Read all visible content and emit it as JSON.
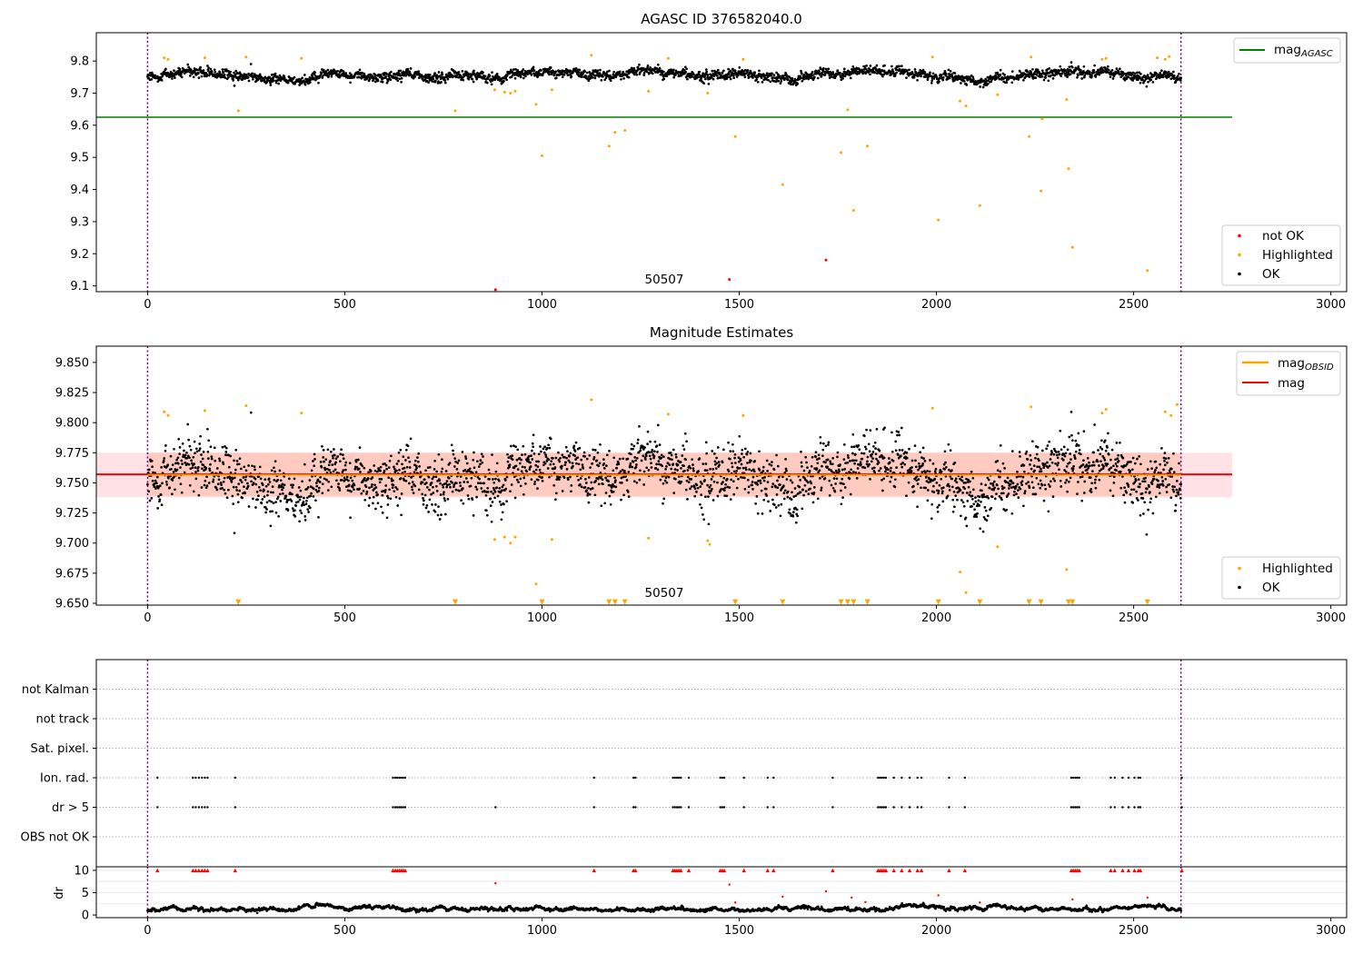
{
  "chart_data": [
    {
      "type": "scatter",
      "title": "AGASC ID 376582040.0",
      "xlim": [
        -130,
        3040
      ],
      "ylim": [
        9.082,
        9.888
      ],
      "x_ticks": [
        0,
        500,
        1000,
        1500,
        2000,
        2500,
        3000
      ],
      "y_ticks": [
        9.1,
        9.2,
        9.3,
        9.4,
        9.5,
        9.6,
        9.7,
        9.8
      ],
      "obsid_bounds": [
        0,
        2620
      ],
      "annotation": {
        "text": "50507",
        "x": 1310,
        "y": 9.105
      },
      "hlines": [
        {
          "name": "mag_AGASC",
          "y": 9.625,
          "x_range": [
            -130,
            2750
          ],
          "color": "#008000"
        }
      ],
      "legend_top": {
        "position": "top-right",
        "entries": [
          {
            "name": "mag",
            "sub": "AGASC",
            "color": "#008000",
            "kind": "line"
          }
        ]
      },
      "legend_bottom": {
        "position": "bottom-right",
        "entries": [
          {
            "name": "not OK",
            "color": "#ff0000",
            "kind": "dot"
          },
          {
            "name": "Highlighted",
            "color": "#ffa500",
            "kind": "dot"
          },
          {
            "name": "OK",
            "color": "#000000",
            "kind": "dot"
          }
        ]
      },
      "series": [
        {
          "name": "OK",
          "color": "#000000",
          "generated": {
            "n": 2620,
            "x_range": [
              0,
              2620
            ],
            "center": 9.757,
            "spread": 0.013
          }
        },
        {
          "name": "Highlighted",
          "color": "#ffa500",
          "points": [
            [
              42,
              9.81
            ],
            [
              52,
              9.805
            ],
            [
              145,
              9.81
            ],
            [
              230,
              9.645
            ],
            [
              250,
              9.812
            ],
            [
              390,
              9.808
            ],
            [
              780,
              9.645
            ],
            [
              880,
              9.71
            ],
            [
              905,
              9.703
            ],
            [
              920,
              9.7
            ],
            [
              932,
              9.706
            ],
            [
              985,
              9.665
            ],
            [
              1000,
              9.505
            ],
            [
              1025,
              9.71
            ],
            [
              1125,
              9.818
            ],
            [
              1170,
              9.535
            ],
            [
              1185,
              9.578
            ],
            [
              1210,
              9.584
            ],
            [
              1270,
              9.706
            ],
            [
              1320,
              9.808
            ],
            [
              1420,
              9.7
            ],
            [
              1490,
              9.565
            ],
            [
              1510,
              9.805
            ],
            [
              1610,
              9.415
            ],
            [
              1758,
              9.515
            ],
            [
              1775,
              9.648
            ],
            [
              1790,
              9.335
            ],
            [
              1825,
              9.535
            ],
            [
              1990,
              9.812
            ],
            [
              2005,
              9.305
            ],
            [
              2060,
              9.675
            ],
            [
              2075,
              9.66
            ],
            [
              2110,
              9.35
            ],
            [
              2155,
              9.695
            ],
            [
              2235,
              9.565
            ],
            [
              2240,
              9.812
            ],
            [
              2265,
              9.395
            ],
            [
              2268,
              9.62
            ],
            [
              2330,
              9.68
            ],
            [
              2335,
              9.465
            ],
            [
              2345,
              9.22
            ],
            [
              2420,
              9.805
            ],
            [
              2430,
              9.808
            ],
            [
              2535,
              9.148
            ],
            [
              2560,
              9.81
            ],
            [
              2580,
              9.805
            ],
            [
              2590,
              9.814
            ]
          ]
        },
        {
          "name": "not OK",
          "color": "#ff0000",
          "points": [
            [
              882,
              9.088
            ],
            [
              1475,
              9.12
            ],
            [
              1720,
              9.18
            ]
          ]
        }
      ]
    },
    {
      "type": "scatter",
      "title": "Magnitude Estimates",
      "xlim": [
        -130,
        3040
      ],
      "ylim": [
        9.6485,
        9.8635
      ],
      "x_ticks": [
        0,
        500,
        1000,
        1500,
        2000,
        2500,
        3000
      ],
      "y_ticks": [
        9.65,
        9.675,
        9.7,
        9.725,
        9.75,
        9.775,
        9.8,
        9.825,
        9.85
      ],
      "y_tick_labels": [
        "9.650",
        "9.675",
        "9.700",
        "9.725",
        "9.750",
        "9.775",
        "9.800",
        "9.825",
        "9.850"
      ],
      "obsid_bounds": [
        0,
        2620
      ],
      "annotation": {
        "text": "50507",
        "x": 1310,
        "y": 9.6535
      },
      "bands": [
        {
          "name": "mag band",
          "y_range": [
            9.738,
            9.775
          ],
          "x_range": [
            -130,
            2750
          ],
          "color": "#ffb6c1",
          "opacity": 0.4
        },
        {
          "name": "mag_OBSID band",
          "y_range": [
            9.739,
            9.775
          ],
          "x_range": [
            0,
            2620
          ],
          "color": "#ffa07a",
          "opacity": 0.35
        }
      ],
      "hlines": [
        {
          "name": "mag",
          "y": 9.757,
          "x_range": [
            -130,
            2750
          ],
          "color": "#ff0000"
        },
        {
          "name": "mag_OBSID",
          "y": 9.7565,
          "x_range": [
            0,
            2620
          ],
          "color": "#ffa500"
        }
      ],
      "legend_top": {
        "position": "top-right",
        "entries": [
          {
            "name": "mag",
            "sub": "OBSID",
            "color": "#ffa500",
            "kind": "line"
          },
          {
            "name": "mag",
            "sub": "",
            "color": "#ff0000",
            "kind": "line"
          }
        ]
      },
      "legend_bottom": {
        "position": "bottom-right",
        "entries": [
          {
            "name": "Highlighted",
            "color": "#ffa500",
            "kind": "dot"
          },
          {
            "name": "OK",
            "color": "#000000",
            "kind": "dot"
          }
        ]
      },
      "series": [
        {
          "name": "OK",
          "color": "#000000",
          "generated": {
            "n": 2620,
            "x_range": [
              0,
              2620
            ],
            "center": 9.757,
            "spread": 0.02
          }
        },
        {
          "name": "Highlighted",
          "color": "#ffa500",
          "points": [
            [
              42,
              9.809
            ],
            [
              52,
              9.806
            ],
            [
              145,
              9.81
            ],
            [
              250,
              9.814
            ],
            [
              390,
              9.808
            ],
            [
              880,
              9.703
            ],
            [
              905,
              9.705
            ],
            [
              920,
              9.7
            ],
            [
              932,
              9.705
            ],
            [
              985,
              9.666
            ],
            [
              1025,
              9.703
            ],
            [
              1125,
              9.819
            ],
            [
              1270,
              9.704
            ],
            [
              1320,
              9.807
            ],
            [
              1420,
              9.702
            ],
            [
              1425,
              9.699
            ],
            [
              1510,
              9.806
            ],
            [
              1990,
              9.812
            ],
            [
              2060,
              9.676
            ],
            [
              2075,
              9.659
            ],
            [
              2155,
              9.697
            ],
            [
              2240,
              9.813
            ],
            [
              2330,
              9.678
            ],
            [
              2420,
              9.808
            ],
            [
              2430,
              9.811
            ],
            [
              2580,
              9.809
            ],
            [
              2595,
              9.806
            ],
            [
              2610,
              9.815
            ]
          ]
        },
        {
          "name": "Highlighted (clipped)",
          "color": "#ffa500",
          "marker": "triangle-down",
          "points": [
            [
              230,
              9.651
            ],
            [
              780,
              9.651
            ],
            [
              1000,
              9.651
            ],
            [
              1170,
              9.651
            ],
            [
              1185,
              9.651
            ],
            [
              1210,
              9.651
            ],
            [
              1490,
              9.651
            ],
            [
              1610,
              9.651
            ],
            [
              1758,
              9.651
            ],
            [
              1775,
              9.651
            ],
            [
              1790,
              9.651
            ],
            [
              1825,
              9.651
            ],
            [
              2005,
              9.651
            ],
            [
              2110,
              9.651
            ],
            [
              2235,
              9.651
            ],
            [
              2265,
              9.651
            ],
            [
              2335,
              9.651
            ],
            [
              2345,
              9.651
            ],
            [
              2535,
              9.651
            ]
          ]
        }
      ]
    },
    {
      "type": "scatter",
      "title": "",
      "xlim": [
        -130,
        3040
      ],
      "categories": [
        "not Kalman",
        "not track",
        "Sat. pixel.",
        "Ion. rad.",
        "dr > 5",
        "OBS not OK"
      ],
      "obsid_bounds": [
        0,
        2620
      ],
      "flag_x": [
        25,
        115,
        122,
        130,
        138,
        145,
        152,
        222,
        622,
        628,
        633,
        638,
        643,
        648,
        653,
        1132,
        1232,
        1237,
        1332,
        1337,
        1342,
        1347,
        1352,
        1372,
        1452,
        1457,
        1462,
        1512,
        1572,
        1587,
        1737,
        1852,
        1857,
        1862,
        1867,
        1872,
        1892,
        1912,
        1932,
        1952,
        1962,
        2032,
        2072,
        2342,
        2347,
        2352,
        2357,
        2362,
        2442,
        2452,
        2472,
        2487,
        2502,
        2512,
        2517,
        2622
      ],
      "flag_rows": [
        "Ion. rad.",
        "dr > 5"
      ],
      "dr_extra_x": [
        882
      ]
    },
    {
      "type": "scatter",
      "title": "",
      "ylabel": "dr",
      "xlim": [
        -130,
        3040
      ],
      "ylim": [
        -0.6,
        10.8
      ],
      "x_ticks": [
        0,
        500,
        1000,
        1500,
        2000,
        2500,
        3000
      ],
      "y_ticks": [
        0,
        5,
        10
      ],
      "obsid_bounds": [
        0,
        2620
      ],
      "series": [
        {
          "name": "dr",
          "color": "#000000",
          "generated": {
            "n": 2620,
            "x_range": [
              0,
              2620
            ],
            "center": 0.9,
            "spread": 0.45
          }
        },
        {
          "name": "dr > 5 (clipped)",
          "color": "#ff0000",
          "marker": "triangle-up",
          "y": 10,
          "uses_flag_x": true
        },
        {
          "name": "dr outliers",
          "color": "#ff0000",
          "points": [
            [
              882,
              7.1
            ],
            [
              1475,
              6.8
            ],
            [
              1490,
              2.8
            ],
            [
              1610,
              4.1
            ],
            [
              1720,
              5.3
            ],
            [
              1785,
              3.9
            ],
            [
              1820,
              2.9
            ],
            [
              2005,
              4.4
            ],
            [
              2110,
              2.8
            ],
            [
              2345,
              3.5
            ],
            [
              2535,
              3.9
            ]
          ]
        }
      ]
    }
  ]
}
